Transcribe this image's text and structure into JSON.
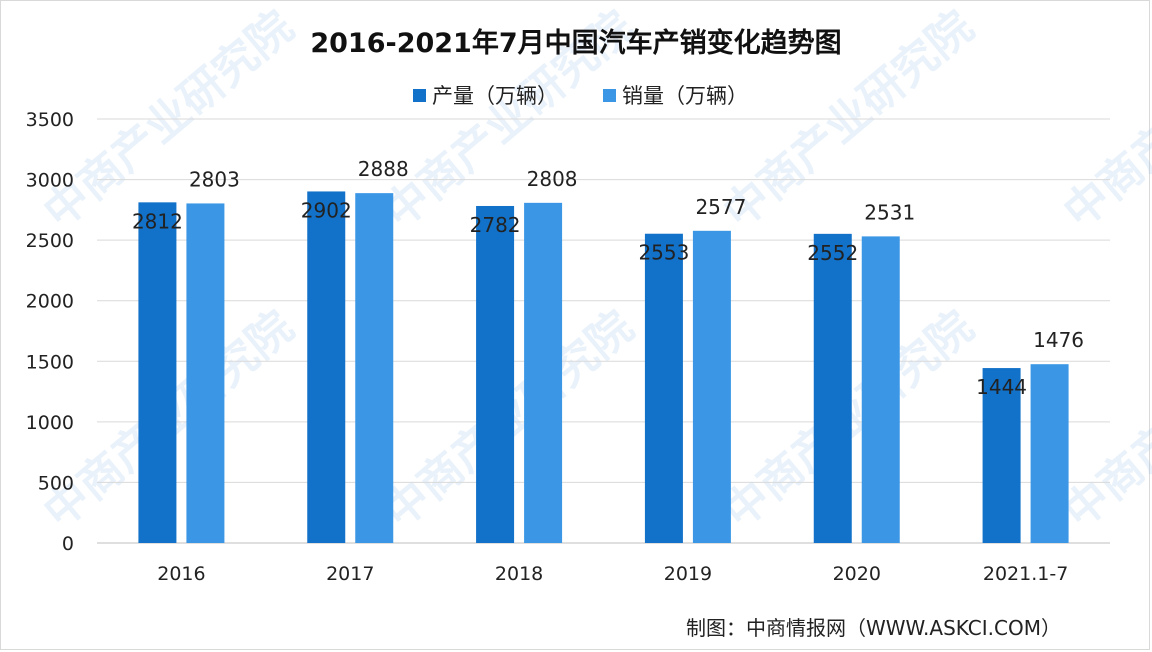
{
  "chart_data": {
    "type": "bar",
    "title": "2016-2021年7月中国汽车产销变化趋势图",
    "categories": [
      "2016",
      "2017",
      "2018",
      "2019",
      "2020",
      "2021.1-7"
    ],
    "series": [
      {
        "name": "产量（万辆）",
        "values": [
          2812,
          2902,
          2782,
          2553,
          2552,
          1444
        ],
        "color": "#1271c8"
      },
      {
        "name": "销量（万辆）",
        "values": [
          2803,
          2888,
          2808,
          2577,
          2531,
          1476
        ],
        "color": "#3b97e6"
      }
    ],
    "ylim": [
      0,
      3500
    ],
    "yticks": [
      0,
      500,
      1000,
      1500,
      2000,
      2500,
      3000,
      3500
    ],
    "grid": true,
    "legend_position": "top-center",
    "source_note": "制图：中商情报网（WWW.ASKCI.COM）",
    "watermark_text": "中商产业研究院"
  }
}
